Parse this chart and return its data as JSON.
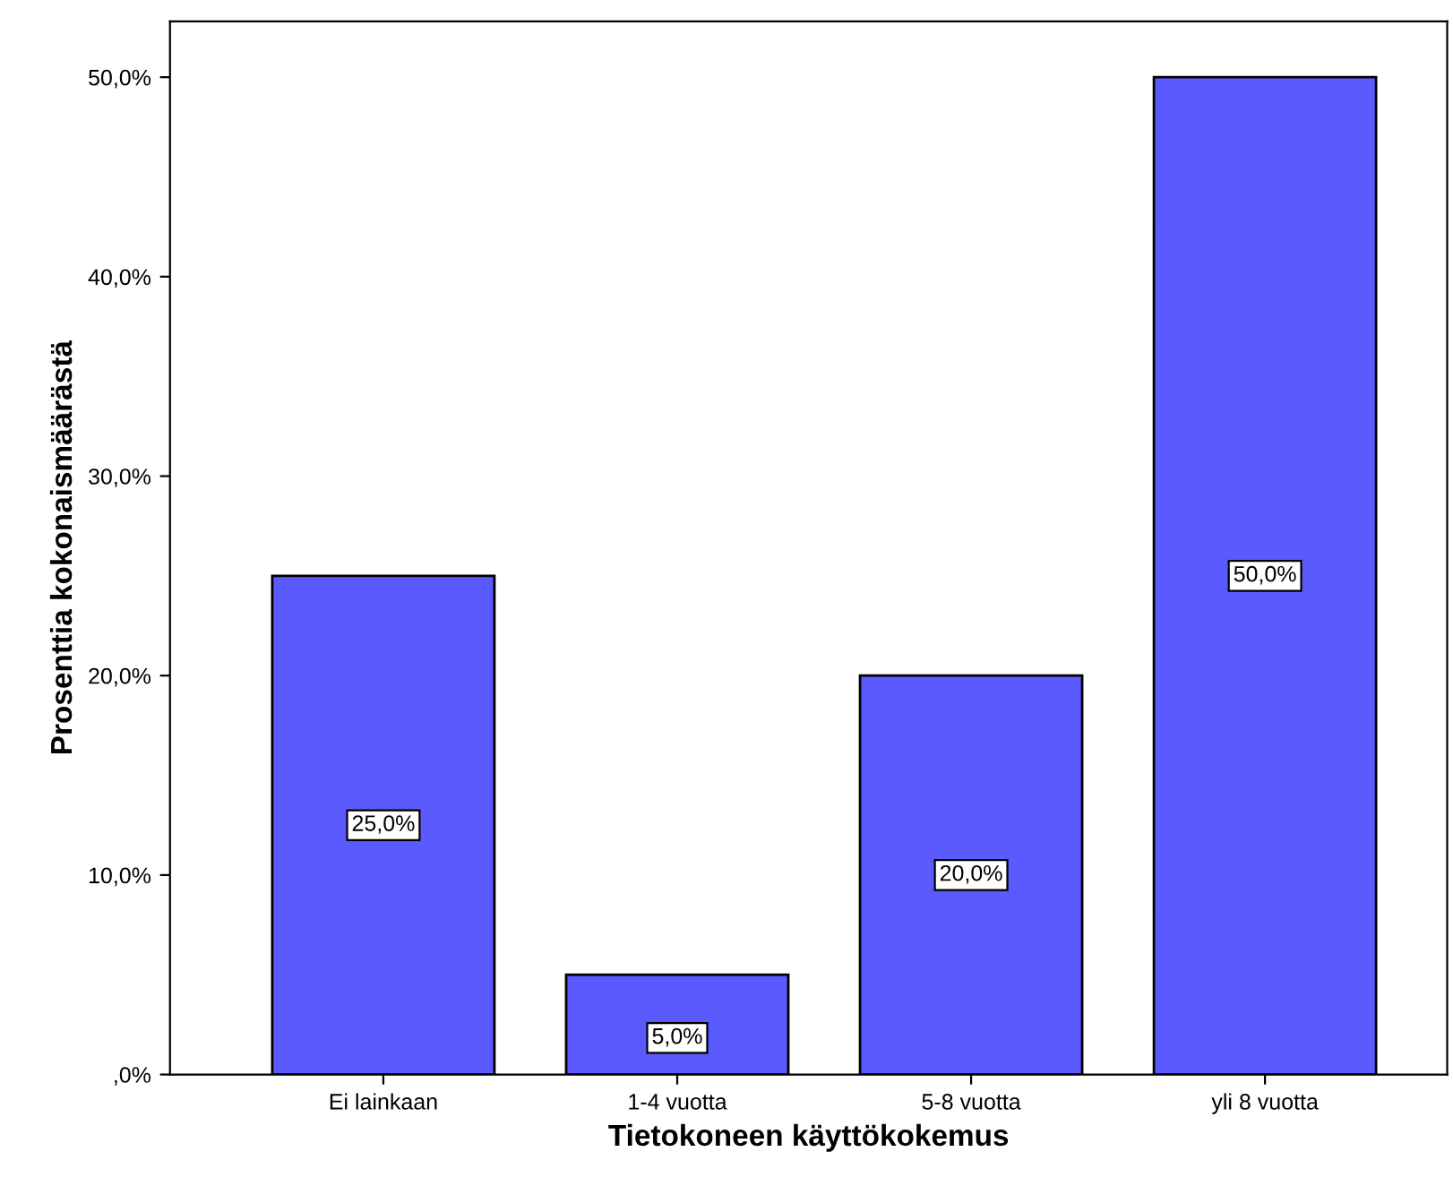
{
  "chart_data": {
    "type": "bar",
    "xlabel": "Tietokoneen käyttökokemus",
    "ylabel": "Prosenttia kokonaismäärästä",
    "categories": [
      "Ei lainkaan",
      "1-4 vuotta",
      "5-8 vuotta",
      "yli 8 vuotta"
    ],
    "values": [
      25,
      5,
      20,
      50
    ],
    "value_labels": [
      "25,0%",
      "5,0%",
      "20,0%",
      "50,0%"
    ],
    "color": "#5a5aff",
    "ylim": [
      0,
      52.8
    ],
    "yticks": [
      {
        "value": 0,
        "label": ",0%"
      },
      {
        "value": 10,
        "label": "10,0%"
      },
      {
        "value": 20,
        "label": "20,0%"
      },
      {
        "value": 30,
        "label": "30,0%"
      },
      {
        "value": 40,
        "label": "40,0%"
      },
      {
        "value": 50,
        "label": "50,0%"
      }
    ],
    "grid": false
  }
}
